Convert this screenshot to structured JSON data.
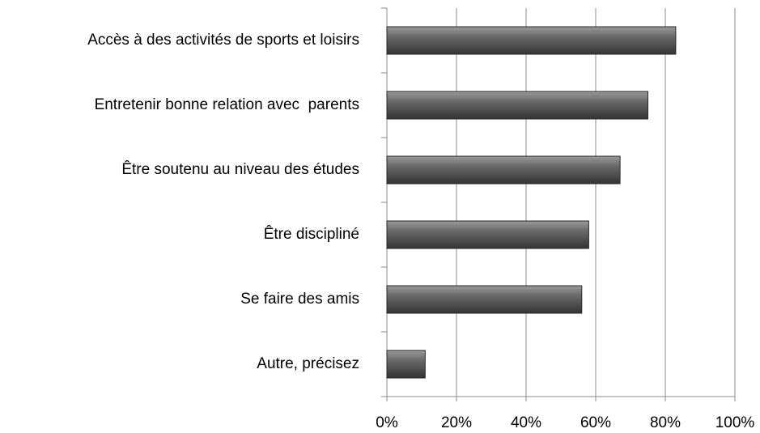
{
  "chart_data": {
    "type": "bar",
    "orientation": "horizontal",
    "categories": [
      "Accès à des activités de sports et loisirs",
      "Entretenir bonne relation avec  parents",
      "Être soutenu au niveau des études",
      "Être discipliné",
      "Se faire des amis",
      "Autre, précisez"
    ],
    "values": [
      83,
      75,
      67,
      58,
      56,
      11
    ],
    "color": "#555555",
    "xlim": [
      0,
      100
    ],
    "xticks": [
      {
        "value": 0,
        "label": "0%"
      },
      {
        "value": 20,
        "label": "20%"
      },
      {
        "value": 40,
        "label": "40%"
      },
      {
        "value": 60,
        "label": "60%"
      },
      {
        "value": 80,
        "label": "80%"
      },
      {
        "value": 100,
        "label": "100%"
      }
    ],
    "grid": true
  }
}
